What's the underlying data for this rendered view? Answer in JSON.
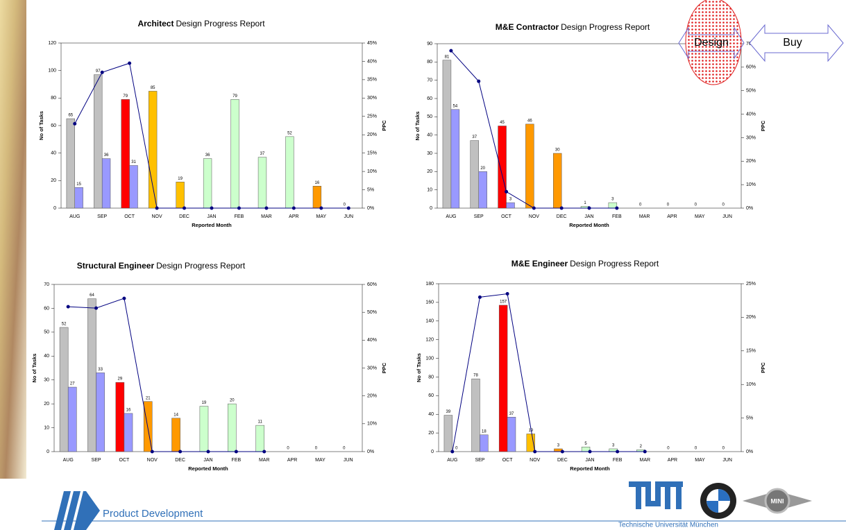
{
  "chart_data": [
    {
      "type": "bar",
      "title": [
        "Architect",
        "Design Progress Report"
      ],
      "xlabel": "Reported Month",
      "ylabel": "No of Tasks",
      "y2label": "PPC",
      "categories": [
        "AUG",
        "SEP",
        "OCT",
        "NOV",
        "DEC",
        "JAN",
        "FEB",
        "MAR",
        "APR",
        "MAY",
        "JUN"
      ],
      "ylim": [
        0,
        120
      ],
      "yticks": [
        0,
        20,
        40,
        60,
        80,
        100,
        120
      ],
      "y2lim": [
        0,
        45
      ],
      "y2ticks": [
        {
          "value": 0,
          "label": "0%"
        },
        {
          "value": 5,
          "label": "5%"
        },
        {
          "value": 10,
          "label": "10%"
        },
        {
          "value": 15,
          "label": "15%"
        },
        {
          "value": 20,
          "label": "20%"
        },
        {
          "value": 25,
          "label": "25%"
        },
        {
          "value": 30,
          "label": "30%"
        },
        {
          "value": 35,
          "label": "35%"
        },
        {
          "value": 40,
          "label": "40%"
        },
        {
          "value": 45,
          "label": "45%"
        }
      ],
      "series": [
        {
          "color": [
            "#c0c0c0",
            "#c0c0c0",
            "#ff0000",
            "#ffc000",
            "#ffc000",
            "#ccffcc",
            "#ccffcc",
            "#ccffcc",
            "#ccffcc",
            "#ff9900",
            "#ff9900"
          ],
          "values": [
            65,
            97,
            79,
            85,
            19,
            36,
            79,
            37,
            52,
            16,
            0
          ]
        },
        {
          "color": "#9999ff",
          "values": [
            15,
            36,
            31,
            null,
            null,
            null,
            null,
            null,
            null,
            null,
            null
          ]
        },
        {
          "color": "#000080",
          "axis": "y2",
          "values": [
            23,
            37,
            39.5,
            0,
            0,
            0,
            0,
            0,
            0,
            0,
            0
          ]
        }
      ]
    },
    {
      "type": "bar",
      "title": [
        "M&E Contractor",
        "Design Progress Report"
      ],
      "xlabel": "Reported Month",
      "ylabel": "No of Tasks",
      "y2label": "PPC",
      "categories": [
        "AUG",
        "SEP",
        "OCT",
        "NOV",
        "DEC",
        "JAN",
        "FEB",
        "MAR",
        "APR",
        "MAY",
        "JUN"
      ],
      "ylim": [
        0,
        90
      ],
      "yticks": [
        0,
        10,
        20,
        30,
        40,
        50,
        60,
        70,
        80,
        90
      ],
      "y2lim": [
        0,
        70
      ],
      "y2ticks": [
        {
          "value": 0,
          "label": "0%"
        },
        {
          "value": 10,
          "label": "10%"
        },
        {
          "value": 20,
          "label": "20%"
        },
        {
          "value": 30,
          "label": "30%"
        },
        {
          "value": 40,
          "label": "40%"
        },
        {
          "value": 50,
          "label": "50%"
        },
        {
          "value": 60,
          "label": "60%"
        },
        {
          "value": 70,
          "label": "70%"
        }
      ],
      "series": [
        {
          "color": [
            "#c0c0c0",
            "#c0c0c0",
            "#ff0000",
            "#ff9900",
            "#ff9900",
            "#ccffcc",
            "#ccffcc",
            "#ccffcc",
            "#ccffcc",
            "#ccffcc",
            "#ccffcc"
          ],
          "values": [
            81,
            37,
            45,
            46,
            30,
            1,
            3,
            0,
            0,
            0,
            0
          ]
        },
        {
          "color": "#9999ff",
          "values": [
            54,
            20,
            3,
            null,
            null,
            null,
            null,
            null,
            null,
            null,
            null
          ]
        },
        {
          "color": "#000080",
          "axis": "y2",
          "values": [
            67,
            54,
            7,
            0,
            0,
            0,
            0,
            null,
            null,
            null,
            null
          ]
        }
      ]
    },
    {
      "type": "bar",
      "title": [
        "Structural Engineer",
        "Design Progress Report"
      ],
      "xlabel": "Reported Month",
      "ylabel": "No of Tasks",
      "y2label": "PPC",
      "categories": [
        "AUG",
        "SEP",
        "OCT",
        "NOV",
        "DEC",
        "JAN",
        "FEB",
        "MAR",
        "APR",
        "MAY",
        "JUN"
      ],
      "ylim": [
        0,
        70
      ],
      "yticks": [
        0,
        10,
        20,
        30,
        40,
        50,
        60,
        70
      ],
      "y2lim": [
        0,
        60
      ],
      "y2ticks": [
        {
          "value": 0,
          "label": "0%"
        },
        {
          "value": 10,
          "label": "10%"
        },
        {
          "value": 20,
          "label": "20%"
        },
        {
          "value": 30,
          "label": "30%"
        },
        {
          "value": 40,
          "label": "40%"
        },
        {
          "value": 50,
          "label": "50%"
        },
        {
          "value": 60,
          "label": "60%"
        }
      ],
      "series": [
        {
          "color": [
            "#c0c0c0",
            "#c0c0c0",
            "#ff0000",
            "#ff9900",
            "#ff9900",
            "#ccffcc",
            "#ccffcc",
            "#ccffcc",
            "#ccffcc",
            "#ccffcc",
            "#ccffcc"
          ],
          "values": [
            52,
            64,
            29,
            21,
            14,
            19,
            20,
            11,
            0,
            0,
            0
          ]
        },
        {
          "color": "#9999ff",
          "values": [
            27,
            33,
            16,
            null,
            null,
            null,
            null,
            null,
            null,
            null,
            null
          ]
        },
        {
          "color": "#000080",
          "axis": "y2",
          "values": [
            52,
            51.5,
            55,
            0,
            0,
            0,
            0,
            0,
            null,
            null,
            null
          ]
        }
      ]
    },
    {
      "type": "bar",
      "title": [
        "M&E Engineer",
        "Design Progress Report"
      ],
      "xlabel": "Reported Month",
      "ylabel": "No of Tasks",
      "y2label": "PPC",
      "categories": [
        "AUG",
        "SEP",
        "OCT",
        "NOV",
        "DEC",
        "JAN",
        "FEB",
        "MAR",
        "APR",
        "MAY",
        "JUN"
      ],
      "ylim": [
        0,
        180
      ],
      "yticks": [
        0,
        20,
        40,
        60,
        80,
        100,
        120,
        140,
        160,
        180
      ],
      "y2lim": [
        0,
        25
      ],
      "y2ticks": [
        {
          "value": 0,
          "label": "0%"
        },
        {
          "value": 5,
          "label": "5%"
        },
        {
          "value": 10,
          "label": "10%"
        },
        {
          "value": 15,
          "label": "15%"
        },
        {
          "value": 20,
          "label": "20%"
        },
        {
          "value": 25,
          "label": "25%"
        }
      ],
      "series": [
        {
          "color": [
            "#c0c0c0",
            "#c0c0c0",
            "#ff0000",
            "#ffc000",
            "#ff9900",
            "#ccffcc",
            "#ccffcc",
            "#ccffcc",
            "#ccffcc",
            "#ccffcc",
            "#ccffcc"
          ],
          "values": [
            39,
            78,
            157,
            19,
            3,
            5,
            3,
            2,
            0,
            0,
            0
          ]
        },
        {
          "color": "#9999ff",
          "values": [
            0,
            18,
            37,
            null,
            null,
            null,
            null,
            null,
            null,
            null,
            null
          ]
        },
        {
          "color": "#000080",
          "axis": "y2",
          "values": [
            0,
            23,
            23.5,
            0,
            0,
            0,
            0,
            0,
            null,
            null,
            null
          ]
        }
      ]
    }
  ],
  "annotations": {
    "design": "Design",
    "buy": "Buy"
  },
  "footer": {
    "department": "Product Development",
    "university": "Technische Universität München",
    "mini": "MINI"
  }
}
